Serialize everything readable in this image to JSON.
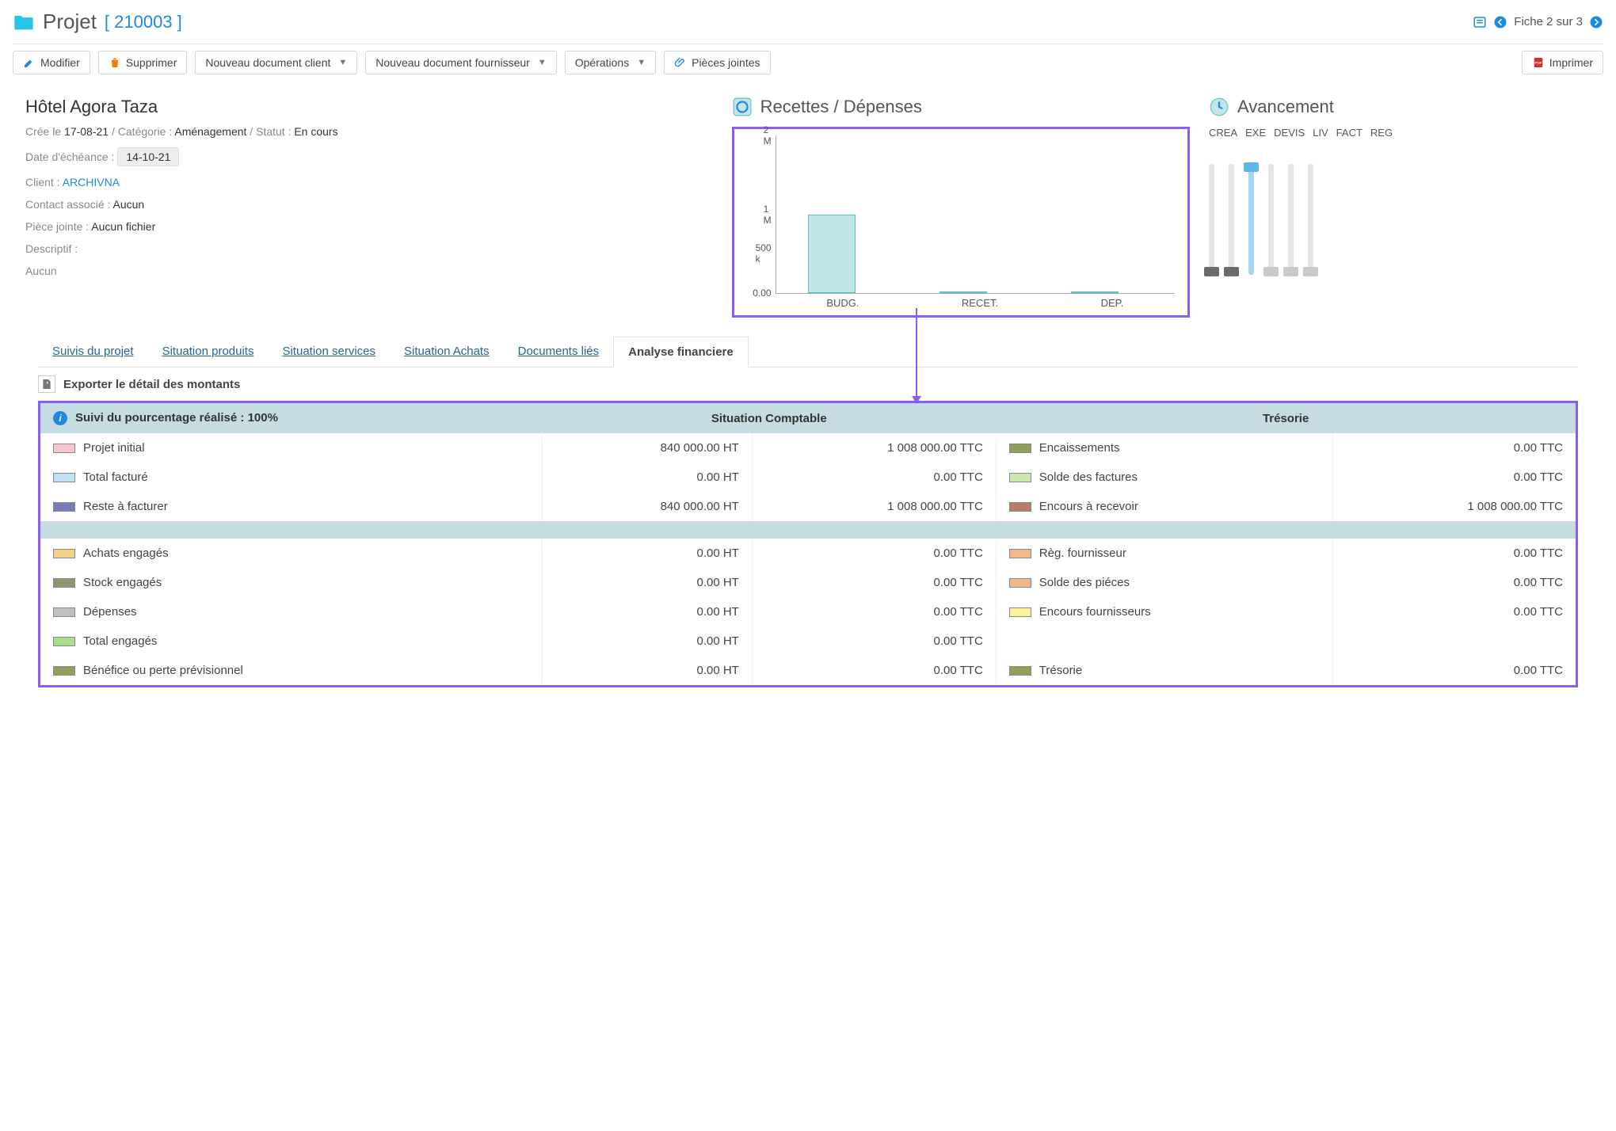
{
  "header": {
    "title": "Projet",
    "id": "[ 210003 ]",
    "fiche": "Fiche 2 sur 3"
  },
  "toolbar": {
    "modifier": "Modifier",
    "supprimer": "Supprimer",
    "doc_client": "Nouveau document client",
    "doc_fournisseur": "Nouveau document fournisseur",
    "operations": "Opérations",
    "pieces": "Pièces jointes",
    "imprimer": "Imprimer"
  },
  "project": {
    "name": "Hôtel Agora Taza",
    "cree_label": "Crée le",
    "cree_date": "17-08-21",
    "categorie_label": "Catégorie :",
    "categorie": "Aménagement",
    "statut_label": "Statut :",
    "statut": "En cours",
    "echeance_label": "Date d'échéance :",
    "echeance": "14-10-21",
    "client_label": "Client :",
    "client": "ARCHIVNA",
    "contact_label": "Contact associé :",
    "contact": "Aucun",
    "piece_label": "Pièce jointe :",
    "piece": "Aucun fichier",
    "descriptif_label": "Descriptif :",
    "descriptif": "Aucun"
  },
  "chart": {
    "title": "Recettes / Dépenses",
    "type": "bar",
    "border_color": "#8b5cf6",
    "ylim": [
      0,
      2000000
    ],
    "yticks": [
      {
        "v": 0,
        "l": "0.00"
      },
      {
        "v": 500000,
        "l": "500 k"
      },
      {
        "v": 1000000,
        "l": "1 M"
      },
      {
        "v": 2000000,
        "l": "2 M"
      }
    ],
    "categories": [
      "BUDG.",
      "RECET.",
      "DEP."
    ],
    "values": [
      1000000,
      0,
      0
    ],
    "bar_fill": "#c2e5e7",
    "bar_stroke": "#5bbfc4",
    "bg": "#ffffff"
  },
  "advancement": {
    "title": "Avancement",
    "labels": [
      "CREA",
      "EXE",
      "DEVIS",
      "LIV",
      "FACT",
      "REG"
    ],
    "colors": [
      "#6b6b6b",
      "#6b6b6b",
      "#5ab7e8",
      "#c9c9c9",
      "#c9c9c9",
      "#c9c9c9"
    ],
    "active_index": 2,
    "track_color": "#e5e5e5",
    "active_track_color": "#a7d8f2"
  },
  "tabs": [
    "Suivis du projet",
    "Situation produits",
    "Situation services",
    "Situation Achats",
    "Documents liés",
    "Analyse financiere"
  ],
  "active_tab": 5,
  "export_label": "Exporter le détail des montants",
  "table": {
    "header_bg": "#c5dce3",
    "suivilabel": "Suivi du pourcentage réalisé :",
    "suivipct": "100%",
    "col1": "Situation Comptable",
    "col2": "Trésorie",
    "rows_a": [
      {
        "swatch": "#f8c5d1",
        "label": "Projet initial",
        "ht": "840 000.00 HT",
        "ttc": "1 008 000.00 TTC"
      },
      {
        "swatch": "#bfe3f2",
        "label": "Total facturé",
        "ht": "0.00 HT",
        "ttc": "0.00 TTC"
      },
      {
        "swatch": "#7a7ab8",
        "label": "Reste à facturer",
        "ht": "840 000.00 HT",
        "ttc": "1 008 000.00 TTC"
      }
    ],
    "rows_b": [
      {
        "swatch": "#8fa05a",
        "label": "Encaissements",
        "ttc": "0.00 TTC"
      },
      {
        "swatch": "#c9e8a8",
        "label": "Solde des factures",
        "ttc": "0.00 TTC"
      },
      {
        "swatch": "#b97a6a",
        "label": "Encours à recevoir",
        "ttc": "1 008 000.00 TTC"
      }
    ],
    "rows_c": [
      {
        "swatch": "#f2d28a",
        "label": "Achats engagés",
        "ht": "0.00 HT",
        "ttc": "0.00 TTC"
      },
      {
        "swatch": "#8a9a6a",
        "label": "Stock engagés",
        "ht": "0.00 HT",
        "ttc": "0.00 TTC"
      },
      {
        "swatch": "#bfbfbf",
        "label": "Dépenses",
        "ht": "0.00 HT",
        "ttc": "0.00 TTC"
      },
      {
        "swatch": "#a8e08a",
        "label": "Total engagés",
        "ht": "0.00 HT",
        "ttc": "0.00 TTC"
      },
      {
        "swatch": "#8fa05a",
        "label": "Bénéfice ou perte prévisionnel",
        "ht": "0.00 HT",
        "ttc": "0.00 TTC"
      }
    ],
    "rows_d": [
      {
        "swatch": "#f2b88a",
        "label": "Règ. fournisseur",
        "ttc": "0.00 TTC"
      },
      {
        "swatch": "#f2b88a",
        "label": "Solde des piéces",
        "ttc": "0.00 TTC"
      },
      {
        "swatch": "#f9f29a",
        "label": "Encours fournisseurs",
        "ttc": "0.00 TTC"
      },
      {
        "swatch": "",
        "label": "",
        "ttc": ""
      },
      {
        "swatch": "#8fa05a",
        "label": "Trésorie",
        "ttc": "0.00 TTC"
      }
    ]
  }
}
